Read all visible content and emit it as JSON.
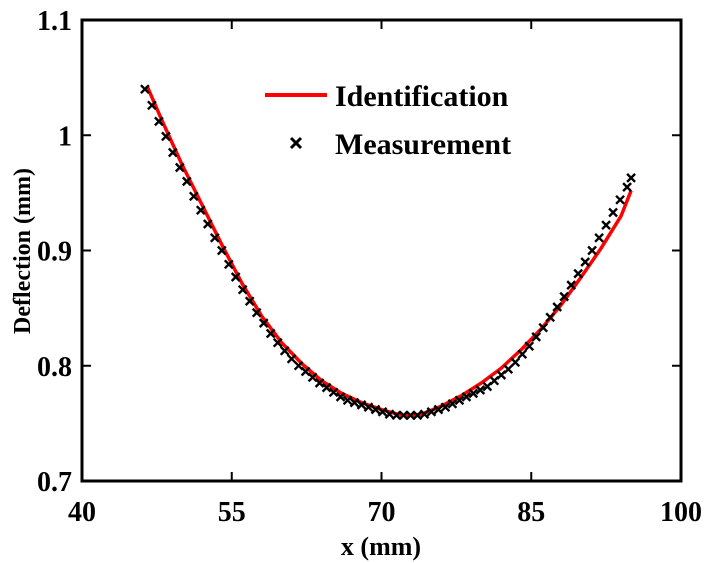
{
  "chart_data": {
    "type": "line",
    "title": "",
    "xlabel": "x (mm)",
    "ylabel": "Deflection (mm)",
    "xlim": [
      40,
      100
    ],
    "ylim": [
      0.7,
      1.1
    ],
    "x_ticks": [
      40,
      55,
      70,
      85,
      100
    ],
    "y_ticks": [
      0.7,
      0.8,
      0.9,
      1.0,
      1.1
    ],
    "x_tick_labels": [
      "40",
      "55",
      "70",
      "85",
      "100"
    ],
    "y_tick_labels": [
      "0.7",
      "0.8",
      "0.9",
      "1",
      "1.1"
    ],
    "grid": false,
    "legend_position": "top-center",
    "series": [
      {
        "name": "Identification",
        "style": "line",
        "color": "#ff0000",
        "x": [
          46.5,
          48,
          50,
          52,
          54,
          56,
          58,
          60,
          62,
          64,
          66,
          68,
          70,
          72,
          73,
          74,
          76,
          78,
          80,
          82,
          84,
          86,
          88,
          90,
          92,
          94,
          95
        ],
        "y": [
          1.043,
          1.013,
          0.975,
          0.94,
          0.905,
          0.872,
          0.843,
          0.82,
          0.802,
          0.787,
          0.776,
          0.768,
          0.762,
          0.757,
          0.757,
          0.758,
          0.765,
          0.774,
          0.785,
          0.798,
          0.814,
          0.832,
          0.853,
          0.877,
          0.902,
          0.93,
          0.952
        ]
      },
      {
        "name": "Measurement",
        "style": "marker",
        "marker": "x",
        "color": "#000000",
        "x": [
          46.3,
          47,
          47.7,
          48.4,
          49.1,
          49.8,
          50.5,
          51.2,
          51.9,
          52.6,
          53.3,
          54,
          54.7,
          55.4,
          56.1,
          56.8,
          57.5,
          58.2,
          58.9,
          59.6,
          60.3,
          61,
          61.7,
          62.4,
          63.1,
          63.8,
          64.5,
          65.2,
          65.9,
          66.6,
          67.3,
          68,
          68.7,
          69.4,
          70.1,
          70.8,
          71.5,
          72.2,
          72.9,
          73.6,
          74.3,
          75,
          75.7,
          76.4,
          77.1,
          77.8,
          78.5,
          79.2,
          79.9,
          80.6,
          81.3,
          82,
          82.7,
          83.4,
          84.1,
          84.8,
          85.5,
          86.2,
          86.9,
          87.6,
          88.3,
          89,
          89.7,
          90.4,
          91.1,
          91.8,
          92.5,
          93.2,
          93.9,
          94.6,
          95
        ],
        "y": [
          1.04,
          1.026,
          1.012,
          0.999,
          0.985,
          0.972,
          0.96,
          0.947,
          0.935,
          0.923,
          0.911,
          0.9,
          0.888,
          0.877,
          0.866,
          0.856,
          0.846,
          0.837,
          0.828,
          0.82,
          0.813,
          0.806,
          0.8,
          0.795,
          0.79,
          0.785,
          0.781,
          0.777,
          0.773,
          0.77,
          0.768,
          0.766,
          0.764,
          0.762,
          0.76,
          0.758,
          0.757,
          0.757,
          0.757,
          0.757,
          0.758,
          0.76,
          0.762,
          0.764,
          0.767,
          0.77,
          0.773,
          0.776,
          0.779,
          0.782,
          0.787,
          0.792,
          0.797,
          0.803,
          0.81,
          0.817,
          0.825,
          0.833,
          0.842,
          0.851,
          0.86,
          0.87,
          0.88,
          0.89,
          0.9,
          0.911,
          0.922,
          0.933,
          0.944,
          0.955,
          0.963
        ]
      }
    ]
  }
}
